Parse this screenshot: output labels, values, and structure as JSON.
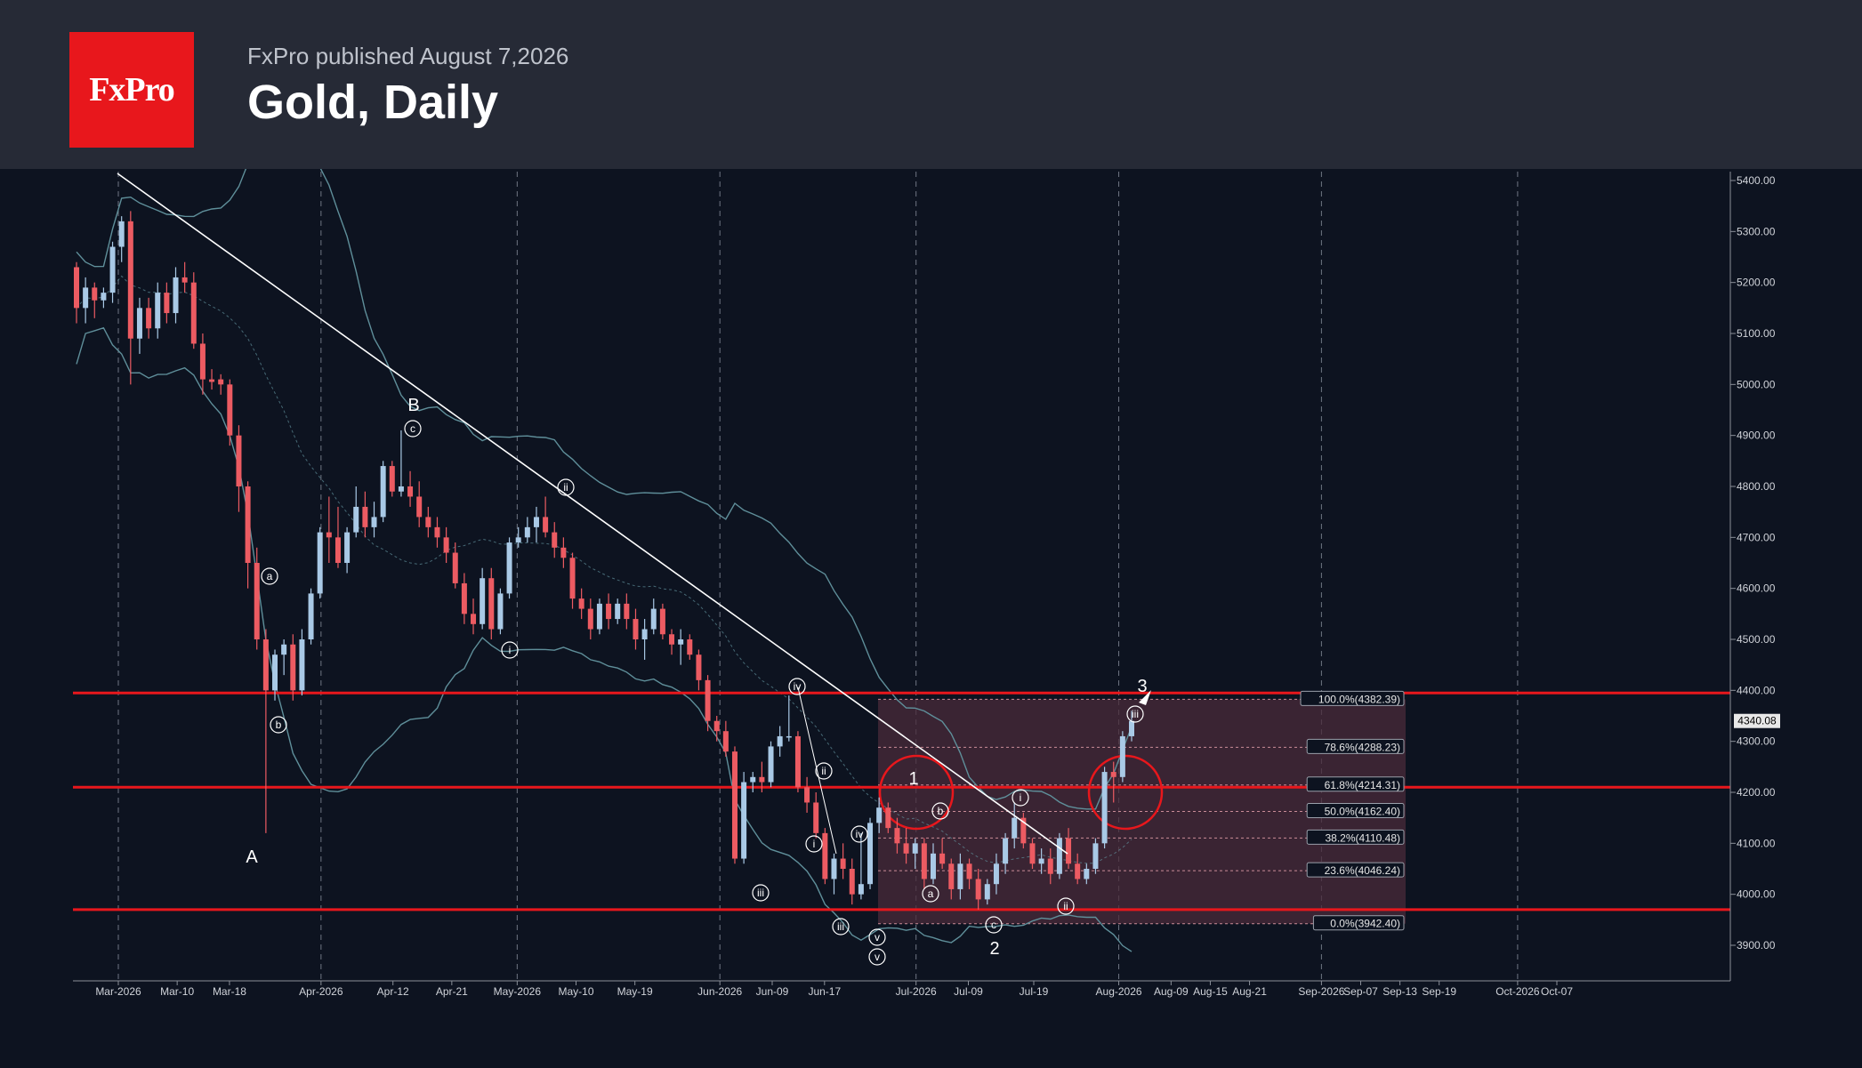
{
  "header": {
    "published": "FxPro published August 7,2026",
    "title": "Gold, Daily",
    "logo_text": "FxPro",
    "logo_color": "#e8171c"
  },
  "chart_data": {
    "type": "candlestick",
    "title": "Gold, Daily",
    "x_ticks": [
      "Mar-2026",
      "Mar-10",
      "Mar-18",
      "Apr-2026",
      "Apr-12",
      "Apr-21",
      "May-2026",
      "May-10",
      "May-19",
      "Jun-2026",
      "Jun-09",
      "Jun-17",
      "Jul-2026",
      "Jul-09",
      "Jul-19",
      "Aug-2026",
      "Aug-09",
      "Aug-15",
      "Aug-21",
      "Sep-2026",
      "Sep-07",
      "Sep-13",
      "Sep-19",
      "Oct-2026",
      "Oct-07"
    ],
    "y_ticks": [
      3900,
      4000,
      4100,
      4200,
      4300,
      4400,
      4500,
      4600,
      4700,
      4800,
      4900,
      5000,
      5100,
      5200,
      5300,
      5400
    ],
    "y_tick_labels": [
      "3900.00",
      "4000.00",
      "4100.00",
      "4200.00",
      "4300.00",
      "4400.00",
      "4500.00",
      "4600.00",
      "4700.00",
      "4800.00",
      "4900.00",
      "5000.00",
      "5100.00",
      "5200.00",
      "5300.00",
      "5400.00"
    ],
    "ylim": [
      3830,
      5420
    ],
    "last_price": "4340.08",
    "grid": "vertical dashed at month starts",
    "horizontal_levels": [
      4395,
      4210,
      3970
    ],
    "fibonacci": [
      {
        "label": "100.0%(4382.39)",
        "value": 4382.39
      },
      {
        "label": "78.6%(4288.23)",
        "value": 4288.23
      },
      {
        "label": "61.8%(4214.31)",
        "value": 4214.31
      },
      {
        "label": "50.0%(4162.40)",
        "value": 4162.4
      },
      {
        "label": "38.2%(4110.48)",
        "value": 4110.48
      },
      {
        "label": "23.6%(4046.24)",
        "value": 4046.24
      },
      {
        "label": "0.0%(3942.40)",
        "value": 3942.4
      }
    ],
    "wave_labels": [
      "A",
      "B",
      "1",
      "2",
      "3",
      "a",
      "b",
      "c",
      "i",
      "ii",
      "iii",
      "iv",
      "v"
    ],
    "colors": {
      "up": "#a9c9e6",
      "down": "#ec5b62",
      "level": "#e8171c",
      "fib_box": "#4a2b3a",
      "bands": "#5f8f9a",
      "trendline": "#ffffff"
    },
    "candles": [
      [
        5230,
        5240,
        5120,
        5150
      ],
      [
        5150,
        5210,
        5120,
        5190
      ],
      [
        5190,
        5200,
        5130,
        5165
      ],
      [
        5165,
        5190,
        5150,
        5180
      ],
      [
        5180,
        5280,
        5160,
        5270
      ],
      [
        5270,
        5330,
        5240,
        5320
      ],
      [
        5320,
        5340,
        5000,
        5090
      ],
      [
        5090,
        5170,
        5060,
        5150
      ],
      [
        5150,
        5170,
        5090,
        5110
      ],
      [
        5110,
        5200,
        5090,
        5180
      ],
      [
        5180,
        5200,
        5120,
        5140
      ],
      [
        5140,
        5230,
        5120,
        5210
      ],
      [
        5210,
        5240,
        5180,
        5200
      ],
      [
        5200,
        5220,
        5070,
        5080
      ],
      [
        5080,
        5100,
        4980,
        5010
      ],
      [
        5010,
        5030,
        4990,
        5005
      ],
      [
        5010,
        5020,
        4980,
        5000
      ],
      [
        5000,
        5010,
        4880,
        4900
      ],
      [
        4900,
        4920,
        4750,
        4800
      ],
      [
        4800,
        4810,
        4600,
        4650
      ],
      [
        4650,
        4680,
        4480,
        4500
      ],
      [
        4500,
        4520,
        4120,
        4400
      ],
      [
        4400,
        4480,
        4380,
        4470
      ],
      [
        4470,
        4500,
        4430,
        4490
      ],
      [
        4490,
        4510,
        4380,
        4400
      ],
      [
        4400,
        4520,
        4390,
        4500
      ],
      [
        4500,
        4600,
        4490,
        4590
      ],
      [
        4590,
        4720,
        4580,
        4710
      ],
      [
        4710,
        4780,
        4650,
        4700
      ],
      [
        4700,
        4760,
        4640,
        4650
      ],
      [
        4650,
        4720,
        4630,
        4710
      ],
      [
        4710,
        4800,
        4700,
        4760
      ],
      [
        4760,
        4790,
        4700,
        4720
      ],
      [
        4720,
        4770,
        4700,
        4740
      ],
      [
        4740,
        4850,
        4730,
        4840
      ],
      [
        4840,
        4850,
        4780,
        4790
      ],
      [
        4790,
        4910,
        4780,
        4800
      ],
      [
        4800,
        4830,
        4760,
        4780
      ],
      [
        4780,
        4810,
        4720,
        4740
      ],
      [
        4740,
        4760,
        4700,
        4720
      ],
      [
        4720,
        4740,
        4680,
        4700
      ],
      [
        4700,
        4720,
        4650,
        4670
      ],
      [
        4670,
        4690,
        4600,
        4610
      ],
      [
        4610,
        4630,
        4530,
        4550
      ],
      [
        4550,
        4580,
        4510,
        4530
      ],
      [
        4530,
        4640,
        4520,
        4620
      ],
      [
        4620,
        4640,
        4500,
        4520
      ],
      [
        4520,
        4600,
        4510,
        4590
      ],
      [
        4590,
        4700,
        4580,
        4690
      ],
      [
        4690,
        4720,
        4680,
        4700
      ],
      [
        4700,
        4740,
        4690,
        4720
      ],
      [
        4720,
        4760,
        4690,
        4740
      ],
      [
        4740,
        4780,
        4700,
        4710
      ],
      [
        4710,
        4730,
        4660,
        4680
      ],
      [
        4680,
        4700,
        4640,
        4660
      ],
      [
        4660,
        4670,
        4560,
        4580
      ],
      [
        4580,
        4600,
        4540,
        4560
      ],
      [
        4560,
        4580,
        4500,
        4520
      ],
      [
        4520,
        4580,
        4510,
        4570
      ],
      [
        4570,
        4590,
        4520,
        4540
      ],
      [
        4540,
        4580,
        4530,
        4570
      ],
      [
        4570,
        4590,
        4520,
        4540
      ],
      [
        4540,
        4560,
        4480,
        4500
      ],
      [
        4500,
        4540,
        4460,
        4520
      ],
      [
        4520,
        4580,
        4510,
        4560
      ],
      [
        4560,
        4570,
        4500,
        4510
      ],
      [
        4510,
        4520,
        4470,
        4490
      ],
      [
        4490,
        4520,
        4450,
        4500
      ],
      [
        4500,
        4510,
        4460,
        4470
      ],
      [
        4470,
        4480,
        4400,
        4420
      ],
      [
        4420,
        4430,
        4320,
        4340
      ],
      [
        4340,
        4350,
        4300,
        4320
      ],
      [
        4320,
        4340,
        4270,
        4280
      ],
      [
        4280,
        4290,
        4060,
        4070
      ],
      [
        4070,
        4240,
        4060,
        4220
      ],
      [
        4220,
        4240,
        4200,
        4230
      ],
      [
        4230,
        4260,
        4200,
        4220
      ],
      [
        4220,
        4300,
        4210,
        4290
      ],
      [
        4290,
        4330,
        4270,
        4310
      ],
      [
        4310,
        4390,
        4300,
        4310
      ],
      [
        4310,
        4320,
        4200,
        4210
      ],
      [
        4210,
        4230,
        4160,
        4180
      ],
      [
        4180,
        4200,
        4110,
        4120
      ],
      [
        4120,
        4130,
        4020,
        4030
      ],
      [
        4030,
        4080,
        4000,
        4070
      ],
      [
        4070,
        4100,
        4030,
        4050
      ],
      [
        4050,
        4070,
        3980,
        4000
      ],
      [
        4000,
        4120,
        3990,
        4020
      ],
      [
        4020,
        4150,
        4010,
        4140
      ],
      [
        4140,
        4190,
        4120,
        4170
      ],
      [
        4170,
        4180,
        4120,
        4130
      ],
      [
        4130,
        4150,
        4080,
        4100
      ],
      [
        4100,
        4130,
        4060,
        4080
      ],
      [
        4080,
        4110,
        4050,
        4100
      ],
      [
        4100,
        4110,
        4010,
        4030
      ],
      [
        4030,
        4100,
        4020,
        4080
      ],
      [
        4080,
        4110,
        4050,
        4060
      ],
      [
        4060,
        4070,
        3990,
        4010
      ],
      [
        4010,
        4080,
        3990,
        4060
      ],
      [
        4060,
        4070,
        4010,
        4030
      ],
      [
        4030,
        4050,
        3970,
        3990
      ],
      [
        3990,
        4030,
        3980,
        4020
      ],
      [
        4020,
        4080,
        4000,
        4060
      ],
      [
        4060,
        4120,
        4040,
        4110
      ],
      [
        4110,
        4180,
        4090,
        4150
      ],
      [
        4150,
        4160,
        4090,
        4100
      ],
      [
        4100,
        4110,
        4050,
        4060
      ],
      [
        4060,
        4090,
        4040,
        4070
      ],
      [
        4070,
        4090,
        4020,
        4040
      ],
      [
        4040,
        4120,
        4030,
        4110
      ],
      [
        4110,
        4130,
        4050,
        4060
      ],
      [
        4060,
        4080,
        4020,
        4030
      ],
      [
        4030,
        4060,
        4020,
        4050
      ],
      [
        4050,
        4110,
        4040,
        4100
      ],
      [
        4100,
        4250,
        4090,
        4240
      ],
      [
        4240,
        4260,
        4180,
        4230
      ],
      [
        4230,
        4320,
        4220,
        4310
      ],
      [
        4310,
        4360,
        4300,
        4340
      ]
    ]
  }
}
